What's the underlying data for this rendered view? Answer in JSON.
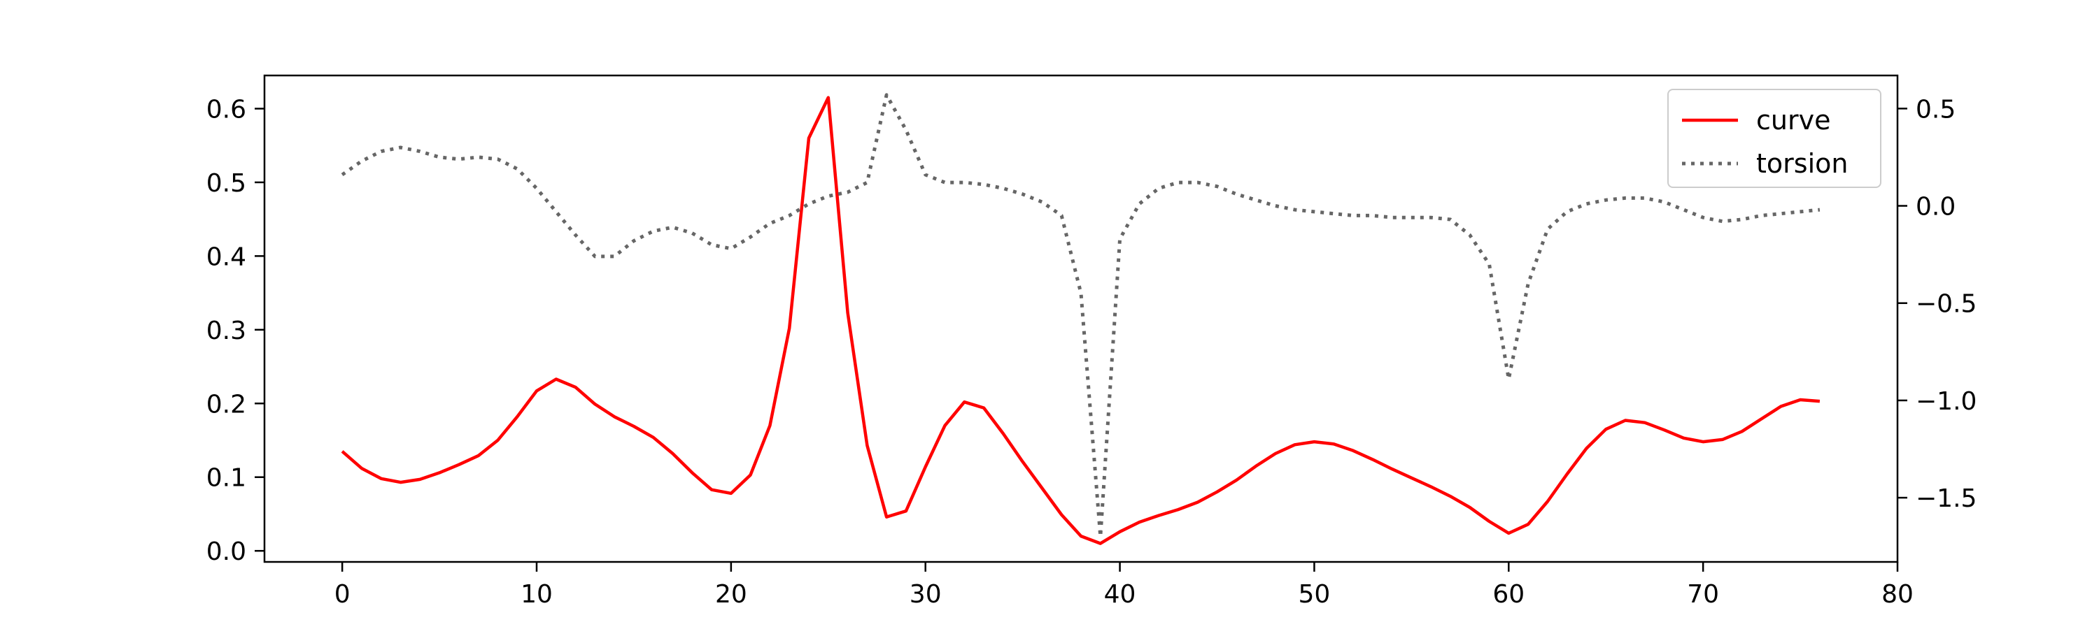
{
  "chart_data": {
    "type": "line",
    "title": "",
    "xlabel": "",
    "ylabel": "",
    "y2label": "",
    "xlim": [
      -4,
      80
    ],
    "ylim": [
      -0.015,
      0.645
    ],
    "y2lim": [
      -1.83,
      0.67
    ],
    "xticks": [
      0,
      10,
      20,
      30,
      40,
      50,
      60,
      70,
      80
    ],
    "xtick_labels": [
      "0",
      "10",
      "20",
      "30",
      "40",
      "50",
      "60",
      "70",
      "80"
    ],
    "yticks": [
      0.0,
      0.1,
      0.2,
      0.3,
      0.4,
      0.5,
      0.6
    ],
    "ytick_labels": [
      "0.0",
      "0.1",
      "0.2",
      "0.3",
      "0.4",
      "0.5",
      "0.6"
    ],
    "y2ticks": [
      0.5,
      0.0,
      -0.5,
      -1.0,
      -1.5
    ],
    "y2tick_labels": [
      "0.5",
      "0.0",
      "−0.5",
      "−1.0",
      "−1.5"
    ],
    "grid": false,
    "legend_position": "top-right",
    "x": [
      0,
      1,
      2,
      3,
      4,
      5,
      6,
      7,
      8,
      9,
      10,
      11,
      12,
      13,
      14,
      15,
      16,
      17,
      18,
      19,
      20,
      21,
      22,
      23,
      24,
      25,
      26,
      27,
      28,
      29,
      30,
      31,
      32,
      33,
      34,
      35,
      36,
      37,
      38,
      39,
      40,
      41,
      42,
      43,
      44,
      45,
      46,
      47,
      48,
      49,
      50,
      51,
      52,
      53,
      54,
      55,
      56,
      57,
      58,
      59,
      60,
      61,
      62,
      63,
      64,
      65,
      66,
      67,
      68,
      69,
      70,
      71,
      72,
      73,
      74,
      75,
      76
    ],
    "series": [
      {
        "name": "curve",
        "axis": "left",
        "color": "#ff0000",
        "style": "solid",
        "values": [
          0.135,
          0.112,
          0.098,
          0.093,
          0.097,
          0.106,
          0.117,
          0.129,
          0.15,
          0.182,
          0.217,
          0.233,
          0.222,
          0.199,
          0.182,
          0.169,
          0.154,
          0.132,
          0.106,
          0.083,
          0.078,
          0.103,
          0.17,
          0.302,
          0.56,
          0.615,
          0.323,
          0.143,
          0.046,
          0.054,
          0.114,
          0.17,
          0.202,
          0.194,
          0.159,
          0.121,
          0.085,
          0.049,
          0.02,
          0.01,
          0.026,
          0.039,
          0.048,
          0.056,
          0.066,
          0.08,
          0.096,
          0.115,
          0.132,
          0.144,
          0.148,
          0.145,
          0.136,
          0.124,
          0.111,
          0.099,
          0.087,
          0.074,
          0.059,
          0.04,
          0.024,
          0.036,
          0.067,
          0.104,
          0.139,
          0.165,
          0.177,
          0.174,
          0.164,
          0.153,
          0.148,
          0.151,
          0.162,
          0.179,
          0.196,
          0.205,
          0.203
        ]
      },
      {
        "name": "torsion",
        "axis": "right",
        "color": "#666666",
        "style": "dotted",
        "values": [
          0.16,
          0.23,
          0.28,
          0.3,
          0.28,
          0.25,
          0.24,
          0.25,
          0.24,
          0.19,
          0.09,
          -0.03,
          -0.15,
          -0.26,
          -0.26,
          -0.18,
          -0.13,
          -0.11,
          -0.14,
          -0.2,
          -0.22,
          -0.16,
          -0.09,
          -0.05,
          0.01,
          0.05,
          0.07,
          0.12,
          0.57,
          0.39,
          0.16,
          0.12,
          0.12,
          0.11,
          0.09,
          0.06,
          0.02,
          -0.05,
          -0.45,
          -1.7,
          -0.17,
          0.01,
          0.09,
          0.12,
          0.12,
          0.1,
          0.06,
          0.03,
          0.0,
          -0.02,
          -0.03,
          -0.04,
          -0.05,
          -0.05,
          -0.06,
          -0.06,
          -0.06,
          -0.07,
          -0.15,
          -0.3,
          -0.89,
          -0.4,
          -0.12,
          -0.03,
          0.01,
          0.03,
          0.04,
          0.04,
          0.02,
          -0.02,
          -0.06,
          -0.08,
          -0.07,
          -0.05,
          -0.04,
          -0.03,
          -0.02
        ]
      }
    ]
  }
}
